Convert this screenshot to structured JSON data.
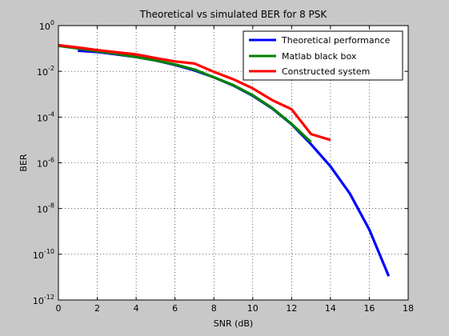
{
  "chart_data": {
    "type": "line",
    "title": "Theoretical vs simulated BER for 8 PSK",
    "xlabel": "SNR (dB)",
    "ylabel": "BER",
    "xlim": [
      0,
      18
    ],
    "ylim_exp": [
      -12,
      0
    ],
    "y_scale": "log",
    "grid": true,
    "legend_position": "top-right",
    "x_ticks": [
      0,
      2,
      4,
      6,
      8,
      10,
      12,
      14,
      16,
      18
    ],
    "y_tick_exponents": [
      0,
      -2,
      -4,
      -6,
      -8,
      -10,
      -12
    ],
    "y_tick_base": "10",
    "series": [
      {
        "name": "Theoretical performance",
        "color": "#0000ff",
        "x": [
          1,
          2,
          3,
          4,
          5,
          6,
          7,
          8,
          9,
          10,
          11,
          12,
          13,
          14,
          15,
          16,
          17
        ],
        "y": [
          0.08,
          0.07,
          0.055,
          0.042,
          0.03,
          0.019,
          0.011,
          0.0055,
          0.0024,
          0.00085,
          0.00024,
          4.8e-05,
          6.5e-06,
          7e-07,
          4.5e-08,
          1.2e-09,
          1.1e-11
        ]
      },
      {
        "name": "Matlab black box",
        "color": "#008000",
        "x": [
          0,
          1,
          2,
          3,
          4,
          5,
          6,
          7,
          8,
          9,
          10,
          11,
          12,
          13
        ],
        "y": [
          0.13,
          0.1,
          0.075,
          0.058,
          0.042,
          0.03,
          0.02,
          0.012,
          0.0055,
          0.0025,
          0.0009,
          0.00025,
          5e-05,
          8e-06
        ]
      },
      {
        "name": "Constructed system",
        "color": "#ff0000",
        "x": [
          0,
          1,
          2,
          3,
          4,
          5,
          6,
          7,
          8,
          9,
          10,
          11,
          12,
          13,
          14
        ],
        "y": [
          0.14,
          0.11,
          0.085,
          0.068,
          0.055,
          0.038,
          0.027,
          0.022,
          0.0095,
          0.0045,
          0.0018,
          0.00055,
          0.00022,
          1.8e-05,
          1e-05
        ]
      }
    ]
  }
}
